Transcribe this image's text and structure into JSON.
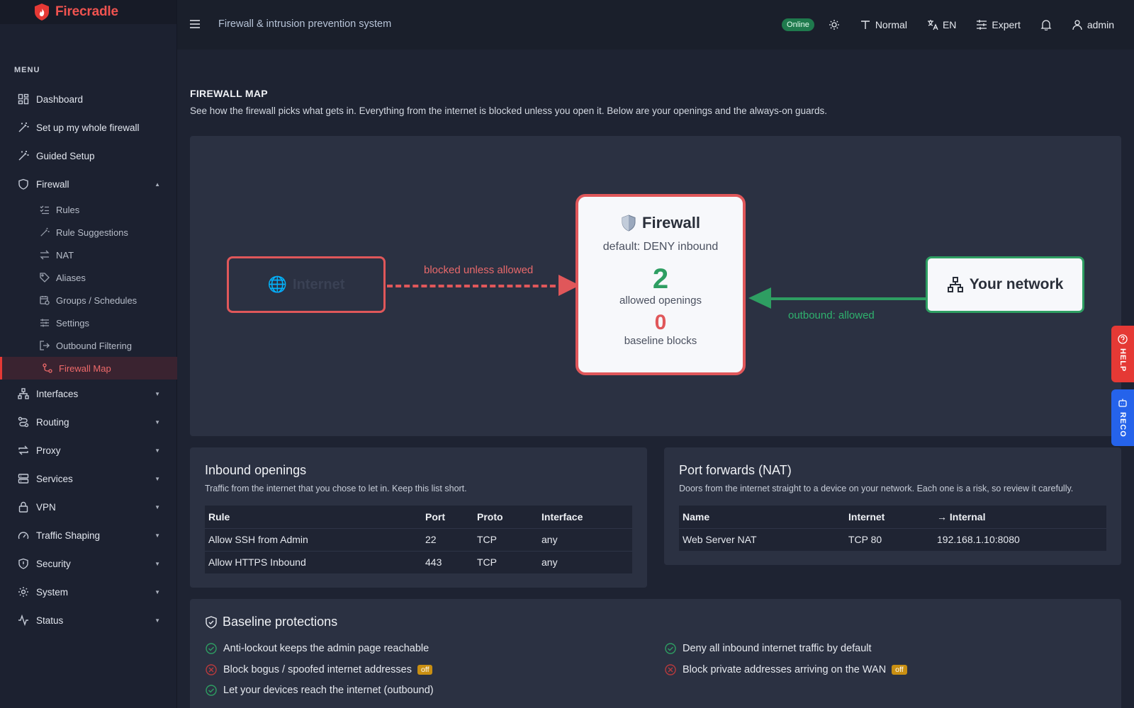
{
  "brand": {
    "name": "Firecradle"
  },
  "sidebar": {
    "menu_title": "MENU",
    "items": [
      {
        "label": "Dashboard"
      },
      {
        "label": "Set up my whole firewall"
      },
      {
        "label": "Guided Setup"
      },
      {
        "label": "Firewall"
      }
    ],
    "firewall_sub": [
      {
        "label": "Rules"
      },
      {
        "label": "Rule Suggestions"
      },
      {
        "label": "NAT"
      },
      {
        "label": "Aliases"
      },
      {
        "label": "Groups / Schedules"
      },
      {
        "label": "Settings"
      },
      {
        "label": "Outbound Filtering"
      },
      {
        "label": "Firewall Map"
      }
    ],
    "groups": [
      {
        "label": "Interfaces"
      },
      {
        "label": "Routing"
      },
      {
        "label": "Proxy"
      },
      {
        "label": "Services"
      },
      {
        "label": "VPN"
      },
      {
        "label": "Traffic Shaping"
      },
      {
        "label": "Security"
      },
      {
        "label": "System"
      },
      {
        "label": "Status"
      }
    ]
  },
  "topbar": {
    "title": "Firewall & intrusion prevention system",
    "status": "Online",
    "text_size": "Normal",
    "language": "EN",
    "mode": "Expert",
    "user": "admin"
  },
  "page": {
    "title": "FIREWALL MAP",
    "description": "See how the firewall picks what gets in. Everything from the internet is blocked unless you open it. Below are your openings and the always-on guards."
  },
  "map": {
    "internet_label": "Internet",
    "blocked_label": "blocked unless allowed",
    "firewall_title": "Firewall",
    "firewall_default": "default: DENY inbound",
    "allowed_count": "2",
    "allowed_label": "allowed openings",
    "baseline_count": "0",
    "baseline_label": "baseline blocks",
    "network_label": "Your network",
    "outbound_label": "outbound: allowed"
  },
  "inbound": {
    "title": "Inbound openings",
    "description": "Traffic from the internet that you chose to let in. Keep this list short.",
    "columns": [
      "Rule",
      "Port",
      "Proto",
      "Interface"
    ],
    "rows": [
      [
        "Allow SSH from Admin",
        "22",
        "TCP",
        "any"
      ],
      [
        "Allow HTTPS Inbound",
        "443",
        "TCP",
        "any"
      ]
    ]
  },
  "nat": {
    "title": "Port forwards (NAT)",
    "description": "Doors from the internet straight to a device on your network. Each one is a risk, so review it carefully.",
    "columns": [
      "Name",
      "Internet",
      "→ Internal"
    ],
    "rows": [
      [
        "Web Server NAT",
        "TCP 80",
        "192.168.1.10:8080"
      ]
    ]
  },
  "baseline": {
    "title": "Baseline protections",
    "items": [
      {
        "label": "Anti-lockout keeps the admin page reachable",
        "status": "on"
      },
      {
        "label": "Deny all inbound internet traffic by default",
        "status": "on"
      },
      {
        "label": "Block bogus / spoofed internet addresses",
        "status": "off",
        "badge": "off"
      },
      {
        "label": "Block private addresses arriving on the WAN",
        "status": "off",
        "badge": "off"
      },
      {
        "label": "Let your devices reach the internet (outbound)",
        "status": "on"
      }
    ]
  },
  "side_tabs": {
    "help": "HELP",
    "reco": "RECO"
  },
  "colors": {
    "accent": "#e53935",
    "success": "#2e9e62",
    "warning": "#c98f12",
    "info": "#2563eb"
  }
}
